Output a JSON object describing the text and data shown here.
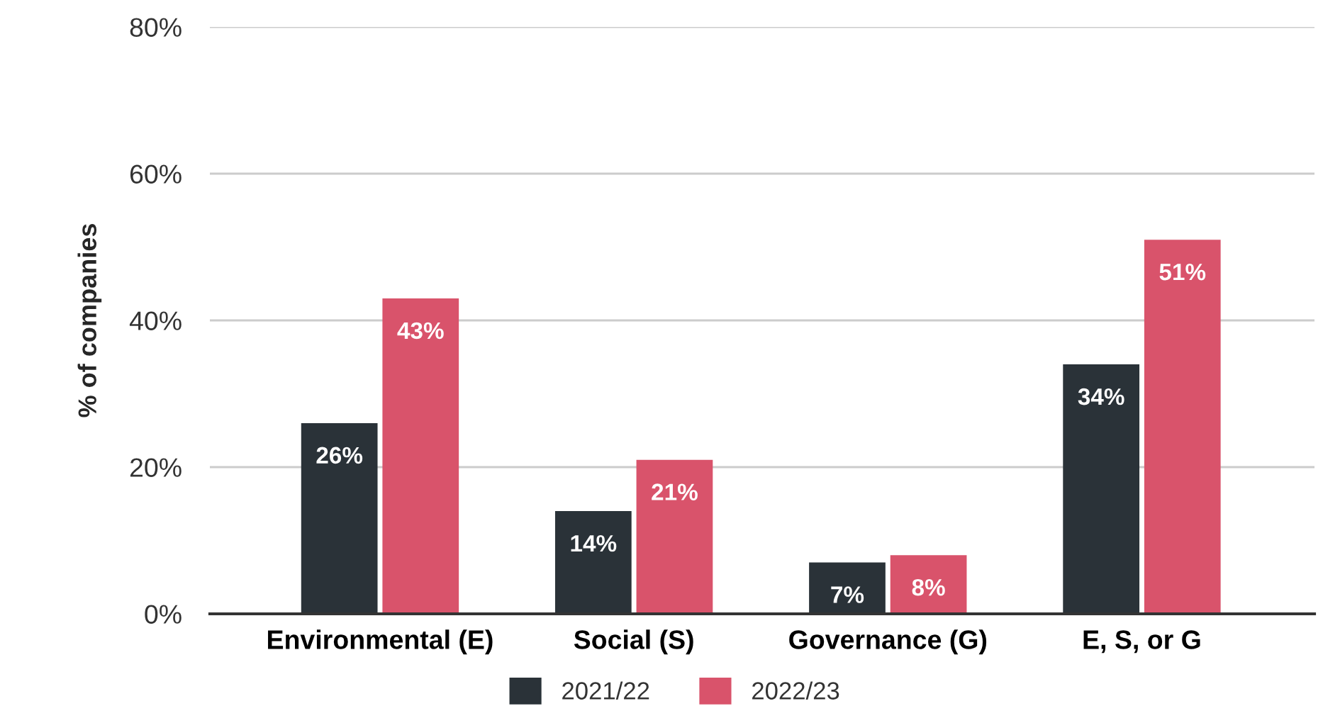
{
  "chart_data": {
    "type": "bar",
    "ylabel": "% of companies",
    "categories": [
      "Environmental (E)",
      "Social (S)",
      "Governance (G)",
      "E, S, or G"
    ],
    "series": [
      {
        "name": "2021/22",
        "color": "#2a3238",
        "values": [
          26,
          14,
          7,
          34
        ],
        "value_labels": [
          "26%",
          "14%",
          "7%",
          "34%"
        ]
      },
      {
        "name": "2022/23",
        "color": "#d9536b",
        "values": [
          43,
          21,
          8,
          51
        ],
        "value_labels": [
          "43%",
          "21%",
          "8%",
          "51%"
        ]
      }
    ],
    "ylim": [
      0,
      80
    ],
    "yticks": [
      {
        "value": 0,
        "label": "0%"
      },
      {
        "value": 20,
        "label": "20%"
      },
      {
        "value": 40,
        "label": "40%"
      },
      {
        "value": 60,
        "label": "60%"
      },
      {
        "value": 80,
        "label": "80%"
      }
    ],
    "grid": "y",
    "legend": "bottom"
  }
}
